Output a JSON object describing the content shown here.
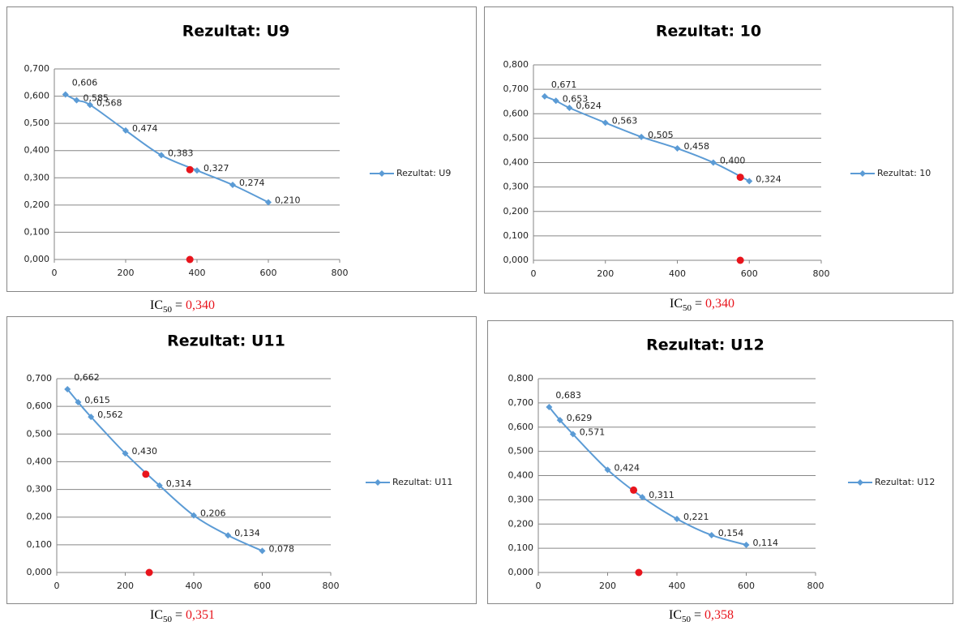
{
  "chart_data": [
    {
      "type": "line",
      "title": "Rezultat: U9",
      "legend": "right",
      "x": [
        31.25,
        62.5,
        100,
        200,
        300,
        400,
        500,
        600
      ],
      "series": [
        {
          "name": "Rezultat: U9",
          "color": "#5b9bd5",
          "values": [
            0.606,
            0.585,
            0.568,
            0.474,
            0.383,
            0.327,
            0.274,
            0.21
          ],
          "value_labels": [
            "0,606",
            "0,585",
            "0,568",
            "0,474",
            "0,383",
            "0,327",
            "0,274",
            "0,210"
          ]
        }
      ],
      "ic50_points": {
        "color": "#e8141c",
        "x": [
          380,
          380
        ],
        "y": [
          0.33,
          0
        ]
      },
      "xlim": [
        0,
        800
      ],
      "xticks": [
        0,
        200,
        400,
        600,
        800
      ],
      "ylim": [
        0,
        0.7
      ],
      "yticks": [
        {
          "value": 0,
          "label": "0,000"
        },
        {
          "value": 0.1,
          "label": "0,100"
        },
        {
          "value": 0.2,
          "label": "0,200"
        },
        {
          "value": 0.3,
          "label": "0,300"
        },
        {
          "value": 0.4,
          "label": "0,400"
        },
        {
          "value": 0.5,
          "label": "0,500"
        },
        {
          "value": 0.6,
          "label": "0,600"
        },
        {
          "value": 0.7,
          "label": "0,700"
        }
      ],
      "grid": true,
      "caption": {
        "text": "IC",
        "sub": "50",
        "eq": "=",
        "value": "0,340"
      }
    },
    {
      "type": "line",
      "title": "Rezultat: 10",
      "legend": "right",
      "x": [
        31.25,
        62.5,
        100,
        200,
        300,
        400,
        500,
        600
      ],
      "series": [
        {
          "name": "Rezultat: 10",
          "color": "#5b9bd5",
          "values": [
            0.671,
            0.653,
            0.624,
            0.563,
            0.505,
            0.458,
            0.4,
            0.324
          ],
          "value_labels": [
            "0,671",
            "0,653",
            "0,624",
            "0,563",
            "0,505",
            "0,458",
            "0,400",
            "0,324"
          ]
        }
      ],
      "ic50_points": {
        "color": "#e8141c",
        "x": [
          575,
          575
        ],
        "y": [
          0.34,
          0
        ]
      },
      "xlim": [
        0,
        800
      ],
      "xticks": [
        0,
        200,
        400,
        600,
        800
      ],
      "ylim": [
        0,
        0.8
      ],
      "yticks": [
        {
          "value": 0,
          "label": "0,000"
        },
        {
          "value": 0.1,
          "label": "0,100"
        },
        {
          "value": 0.2,
          "label": "0,200"
        },
        {
          "value": 0.3,
          "label": "0,300"
        },
        {
          "value": 0.4,
          "label": "0,400"
        },
        {
          "value": 0.5,
          "label": "0,500"
        },
        {
          "value": 0.6,
          "label": "0,600"
        },
        {
          "value": 0.7,
          "label": "0,700"
        },
        {
          "value": 0.8,
          "label": "0,800"
        }
      ],
      "grid": true,
      "caption": {
        "text": "IC",
        "sub": "50",
        "eq": "=",
        "value": "0,340"
      }
    },
    {
      "type": "line",
      "title": "Rezultat: U11",
      "legend": "right",
      "x": [
        31.25,
        62.5,
        100,
        200,
        300,
        400,
        500,
        600
      ],
      "series": [
        {
          "name": "Rezultat: U11",
          "color": "#5b9bd5",
          "values": [
            0.662,
            0.615,
            0.562,
            0.43,
            0.314,
            0.206,
            0.134,
            0.078
          ],
          "value_labels": [
            "0,662",
            "0,615",
            "0,562",
            "0,430",
            "0,314",
            "0,206",
            "0,134",
            "0,078"
          ]
        }
      ],
      "ic50_points": {
        "color": "#e8141c",
        "x": [
          260,
          270
        ],
        "y": [
          0.355,
          0
        ]
      },
      "xlim": [
        0,
        800
      ],
      "xticks": [
        0,
        200,
        400,
        600,
        800
      ],
      "ylim": [
        0,
        0.7
      ],
      "yticks": [
        {
          "value": 0,
          "label": "0,000"
        },
        {
          "value": 0.1,
          "label": "0,100"
        },
        {
          "value": 0.2,
          "label": "0,200"
        },
        {
          "value": 0.3,
          "label": "0,300"
        },
        {
          "value": 0.4,
          "label": "0,400"
        },
        {
          "value": 0.5,
          "label": "0,500"
        },
        {
          "value": 0.6,
          "label": "0,600"
        },
        {
          "value": 0.7,
          "label": "0,700"
        }
      ],
      "grid": true,
      "caption": {
        "text": "IC",
        "sub": "50",
        "eq": "=",
        "value": "0,351"
      }
    },
    {
      "type": "line",
      "title": "Rezultat: U12",
      "legend": "right",
      "x": [
        31.25,
        62.5,
        100,
        200,
        300,
        400,
        500,
        600
      ],
      "series": [
        {
          "name": "Rezultat: U12",
          "color": "#5b9bd5",
          "values": [
            0.683,
            0.629,
            0.571,
            0.424,
            0.311,
            0.221,
            0.154,
            0.114
          ],
          "value_labels": [
            "0,683",
            "0,629",
            "0,571",
            "0,424",
            "0,311",
            "0,221",
            "0,154",
            "0,114"
          ]
        }
      ],
      "ic50_points": {
        "color": "#e8141c",
        "x": [
          275,
          290
        ],
        "y": [
          0.34,
          0
        ]
      },
      "xlim": [
        0,
        800
      ],
      "xticks": [
        0,
        200,
        400,
        600,
        800
      ],
      "ylim": [
        0,
        0.8
      ],
      "yticks": [
        {
          "value": 0,
          "label": "0,000"
        },
        {
          "value": 0.1,
          "label": "0,100"
        },
        {
          "value": 0.2,
          "label": "0,200"
        },
        {
          "value": 0.3,
          "label": "0,300"
        },
        {
          "value": 0.4,
          "label": "0,400"
        },
        {
          "value": 0.5,
          "label": "0,500"
        },
        {
          "value": 0.6,
          "label": "0,600"
        },
        {
          "value": 0.7,
          "label": "0,700"
        },
        {
          "value": 0.8,
          "label": "0,800"
        }
      ],
      "grid": true,
      "caption": {
        "text": "IC",
        "sub": "50",
        "eq": "=",
        "value": "0,358"
      }
    }
  ]
}
